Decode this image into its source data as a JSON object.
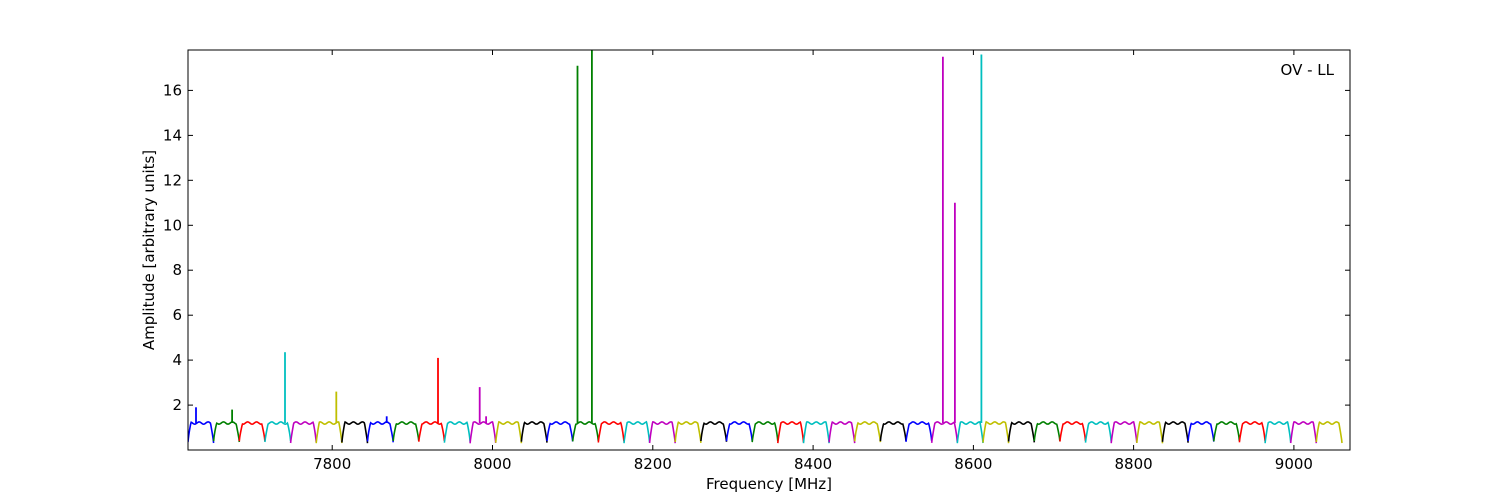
{
  "chart_data": {
    "type": "line",
    "title": "",
    "annotation": "OV - LL",
    "xlabel": "Frequency [MHz]",
    "ylabel": "Amplitude [arbitrary units]",
    "xlim": [
      7620,
      9070
    ],
    "ylim": [
      0,
      17.8
    ],
    "xticks": [
      7800,
      8000,
      8200,
      8400,
      8600,
      8800,
      9000
    ],
    "yticks": [
      2,
      4,
      6,
      8,
      10,
      12,
      14,
      16
    ],
    "grid": false,
    "legend": "none",
    "channel_width_mhz": 32,
    "channel_baseline": {
      "edge_level": 0.35,
      "plateau_level": 1.2
    },
    "color_cycle": [
      "#0000ff",
      "#008000",
      "#ff0000",
      "#00bfbf",
      "#bf00bf",
      "#bfbf00",
      "#000000"
    ],
    "channels": [
      {
        "start": 7620,
        "color": "#0000ff",
        "spikes": [
          [
            7630,
            1.9
          ]
        ]
      },
      {
        "start": 7652,
        "color": "#008000",
        "spikes": [
          [
            7675,
            1.8
          ]
        ]
      },
      {
        "start": 7684,
        "color": "#ff0000",
        "spikes": []
      },
      {
        "start": 7716,
        "color": "#00bfbf",
        "spikes": [
          [
            7741,
            4.35
          ]
        ]
      },
      {
        "start": 7748,
        "color": "#bf00bf",
        "spikes": []
      },
      {
        "start": 7780,
        "color": "#bfbf00",
        "spikes": [
          [
            7805,
            2.6
          ]
        ]
      },
      {
        "start": 7812,
        "color": "#000000",
        "spikes": []
      },
      {
        "start": 7844,
        "color": "#0000ff",
        "spikes": [
          [
            7868,
            1.5
          ]
        ]
      },
      {
        "start": 7876,
        "color": "#008000",
        "spikes": []
      },
      {
        "start": 7908,
        "color": "#ff0000",
        "spikes": [
          [
            7932,
            4.1
          ]
        ]
      },
      {
        "start": 7940,
        "color": "#00bfbf",
        "spikes": []
      },
      {
        "start": 7972,
        "color": "#bf00bf",
        "spikes": [
          [
            7984,
            2.8
          ],
          [
            7992,
            1.5
          ]
        ]
      },
      {
        "start": 8004,
        "color": "#bfbf00",
        "spikes": []
      },
      {
        "start": 8036,
        "color": "#000000",
        "spikes": []
      },
      {
        "start": 8068,
        "color": "#0000ff",
        "spikes": []
      },
      {
        "start": 8100,
        "color": "#008000",
        "spikes": [
          [
            8106,
            17.1
          ],
          [
            8124,
            17.8
          ]
        ]
      },
      {
        "start": 8132,
        "color": "#ff0000",
        "spikes": []
      },
      {
        "start": 8164,
        "color": "#00bfbf",
        "spikes": []
      },
      {
        "start": 8196,
        "color": "#bf00bf",
        "spikes": []
      },
      {
        "start": 8228,
        "color": "#bfbf00",
        "spikes": []
      },
      {
        "start": 8260,
        "color": "#000000",
        "spikes": []
      },
      {
        "start": 8292,
        "color": "#0000ff",
        "spikes": []
      },
      {
        "start": 8324,
        "color": "#008000",
        "spikes": []
      },
      {
        "start": 8356,
        "color": "#ff0000",
        "spikes": []
      },
      {
        "start": 8388,
        "color": "#00bfbf",
        "spikes": []
      },
      {
        "start": 8420,
        "color": "#bf00bf",
        "spikes": []
      },
      {
        "start": 8452,
        "color": "#bfbf00",
        "spikes": []
      },
      {
        "start": 8484,
        "color": "#000000",
        "spikes": []
      },
      {
        "start": 8516,
        "color": "#0000ff",
        "spikes": []
      },
      {
        "start": 8548,
        "color": "#bf00bf",
        "spikes": [
          [
            8562,
            17.5
          ],
          [
            8577,
            11.0
          ]
        ]
      },
      {
        "start": 8580,
        "color": "#00bfbf",
        "spikes": [
          [
            8610,
            17.6
          ]
        ]
      },
      {
        "start": 8612,
        "color": "#bfbf00",
        "spikes": []
      },
      {
        "start": 8644,
        "color": "#000000",
        "spikes": []
      },
      {
        "start": 8676,
        "color": "#008000",
        "spikes": []
      },
      {
        "start": 8708,
        "color": "#ff0000",
        "spikes": []
      },
      {
        "start": 8740,
        "color": "#00bfbf",
        "spikes": []
      },
      {
        "start": 8772,
        "color": "#bf00bf",
        "spikes": []
      },
      {
        "start": 8804,
        "color": "#bfbf00",
        "spikes": []
      },
      {
        "start": 8836,
        "color": "#000000",
        "spikes": []
      },
      {
        "start": 8868,
        "color": "#0000ff",
        "spikes": []
      },
      {
        "start": 8900,
        "color": "#008000",
        "spikes": []
      },
      {
        "start": 8932,
        "color": "#ff0000",
        "spikes": []
      },
      {
        "start": 8964,
        "color": "#00bfbf",
        "spikes": []
      },
      {
        "start": 8996,
        "color": "#bf00bf",
        "spikes": []
      },
      {
        "start": 9028,
        "color": "#bfbf00",
        "spikes": []
      }
    ]
  }
}
